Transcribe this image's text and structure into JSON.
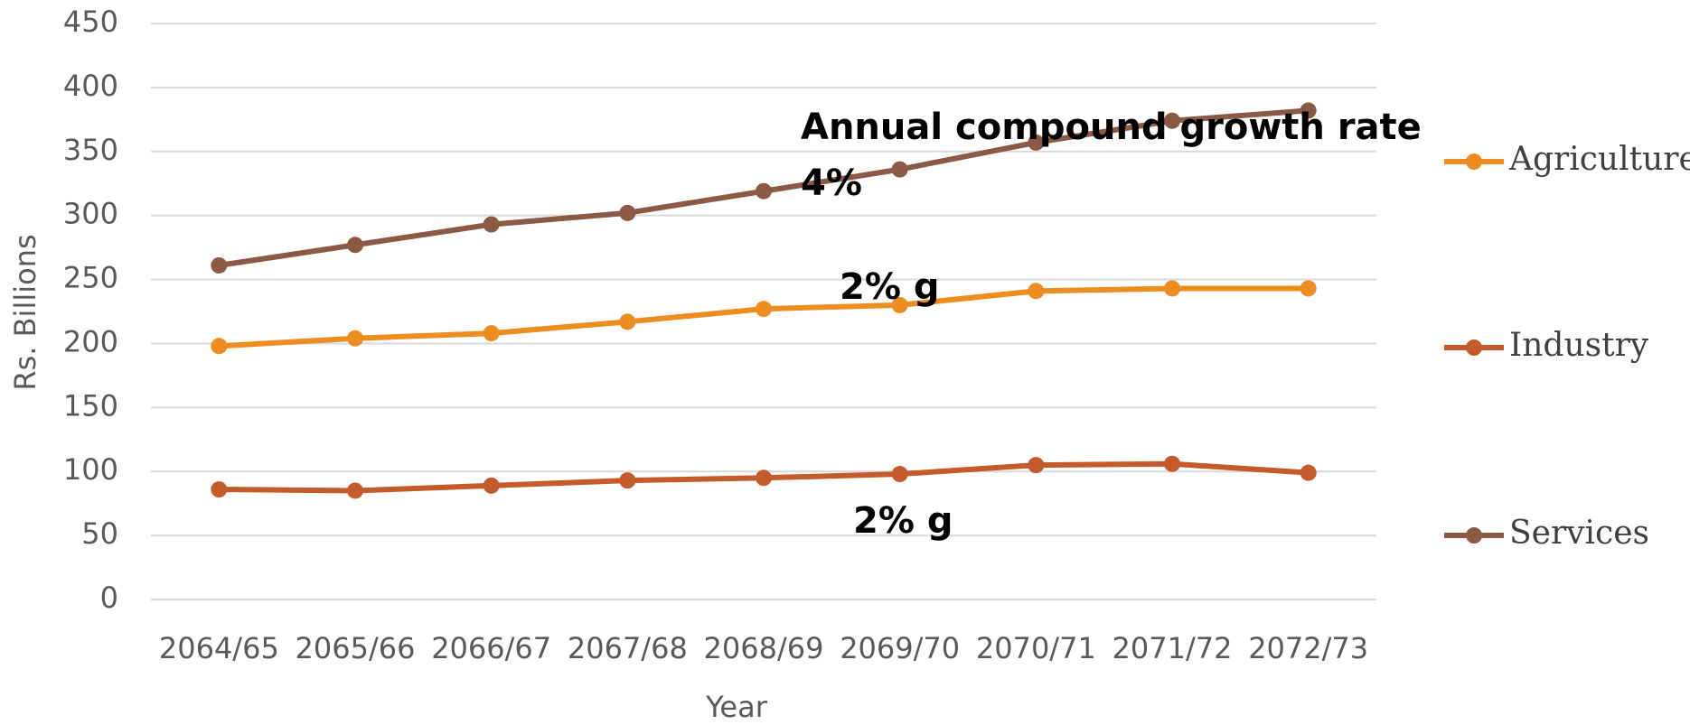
{
  "chart_data": {
    "type": "line",
    "x_label": "Year",
    "y_label": "Rs. Billions",
    "categories": [
      "2064/65",
      "2065/66",
      "2066/67",
      "2067/68",
      "2068/69",
      "2069/70",
      "2070/71",
      "2071/72",
      "2072/73"
    ],
    "series": [
      {
        "name": "Agriculture",
        "color": "#ed8d1f",
        "values": [
          198,
          204,
          208,
          217,
          227,
          230,
          241,
          243,
          243
        ]
      },
      {
        "name": "Industry",
        "color": "#c55a2a",
        "values": [
          86,
          85,
          89,
          93,
          95,
          98,
          105,
          106,
          99
        ]
      },
      {
        "name": "Services",
        "color": "#8b5a44",
        "values": [
          261,
          277,
          293,
          302,
          319,
          336,
          357,
          374,
          382
        ]
      }
    ],
    "annotations": [
      "Annual compound growth rate",
      "4%",
      "2% g",
      "2% g"
    ],
    "ylim": [
      0,
      450
    ],
    "yticks": [
      0,
      50,
      100,
      150,
      200,
      250,
      300,
      350,
      400,
      450
    ],
    "grid": true,
    "legend": "right"
  }
}
